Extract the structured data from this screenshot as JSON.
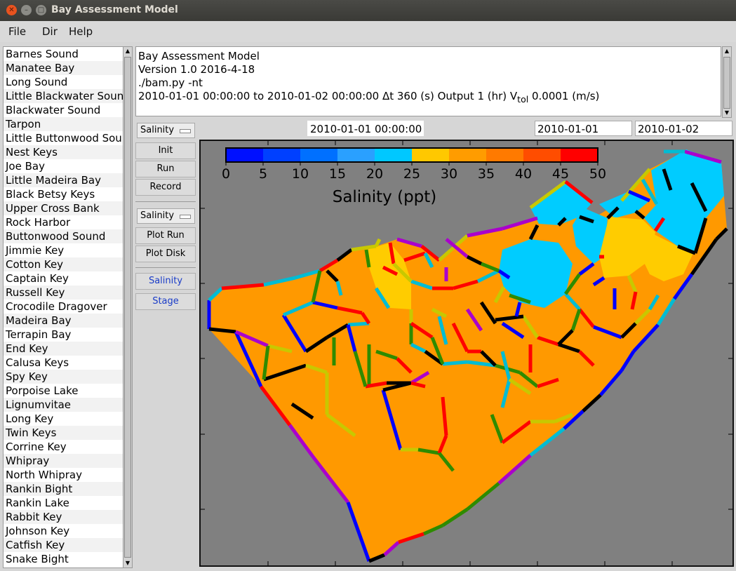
{
  "window": {
    "title": "Bay Assessment Model"
  },
  "menu": [
    "File",
    "Dir",
    "Help"
  ],
  "basins": [
    "Barnes Sound",
    "Manatee Bay",
    "Long Sound",
    "Little Blackwater Sound",
    "Blackwater Sound",
    "Tarpon",
    "Little Buttonwood Sound",
    "Nest Keys",
    "Joe Bay",
    "Little Madeira Bay",
    "Black Betsy Keys",
    "Upper Cross Bank",
    "Rock Harbor",
    "Buttonwood Sound",
    "Jimmie Key",
    "Cotton Key",
    "Captain Key",
    "Russell Key",
    "Crocodile Dragover",
    "Madeira Bay",
    "Terrapin Bay",
    "End Key",
    "Calusa Keys",
    "Spy Key",
    "Porpoise Lake",
    "Lignumvitae",
    "Long Key",
    "Twin Keys",
    "Corrine Key",
    "Whipray",
    "North Whipray",
    "Rankin Bight",
    "Rankin Lake",
    "Rabbit Key",
    "Johnson Key",
    "Catfish Key",
    "Snake Bight"
  ],
  "info": {
    "line1": "Bay Assessment Model",
    "line2": "Version 1.0 2016-4-18",
    "line3": "./bam.py -nt",
    "line4": "2010-01-01 00:00:00 to 2010-01-02 00:00:00  Δt 360 (s)  Output 1 (hr)  V",
    "vtol_sub": "tol",
    "vtol_value": " 0.0001 (m/s)"
  },
  "time": {
    "current": "2010-01-01 00:00:00",
    "start": "2010-01-01",
    "end": "2010-01-02"
  },
  "controls": {
    "select1": "Salinity",
    "init": "Init",
    "run": "Run",
    "record": "Record",
    "select2": "Salinity",
    "plot_run": "Plot Run",
    "plot_disk": "Plot Disk",
    "salinity": "Salinity",
    "stage": "Stage"
  },
  "map": {
    "colorbar_title": "Salinity (ppt)",
    "colorbar_ticks": [
      "0",
      "5",
      "10",
      "15",
      "20",
      "25",
      "30",
      "35",
      "40",
      "45",
      "50"
    ],
    "colorbar_colors": [
      "#0010ff",
      "#0040ff",
      "#0070ff",
      "#2aa0ff",
      "#00c8ff",
      "#ffc800",
      "#ff9c00",
      "#ff7a00",
      "#ff4d00",
      "#ff0000"
    ],
    "fill_colors": {
      "orange": "#ff9900",
      "cyan": "#00ccff",
      "yellow": "#ffcc00",
      "background": "#808080"
    },
    "edge_colors": [
      "#000000",
      "#0000ff",
      "#00bcd4",
      "#ff0000",
      "#aa00cc",
      "#2e8b00",
      "#c8c800"
    ]
  }
}
